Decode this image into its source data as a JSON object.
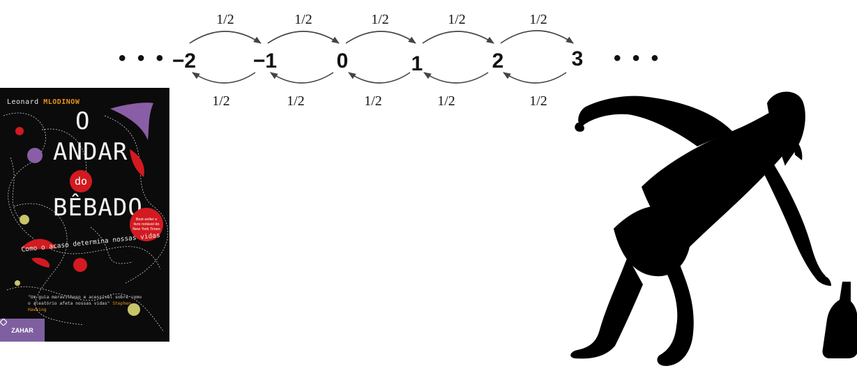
{
  "diagram": {
    "states": [
      "−2",
      "−1",
      "0",
      "1",
      "2",
      "3"
    ],
    "ellipsis": "• • •",
    "top_transitions": [
      "1/2",
      "1/2",
      "1/2",
      "1/2",
      "1/2"
    ],
    "bottom_transitions": [
      "1/2",
      "1/2",
      "1/2",
      "1/2",
      "1/2"
    ]
  },
  "book": {
    "author_first": "Leonard",
    "author_last": "MLODINOW",
    "title_line1": "O",
    "title_line2": "ANDAR",
    "title_line3": "do",
    "title_line4": "BÊBADO",
    "subtitle": "Como o acaso determina nossas vidas",
    "badge": "Best-seller e livro notável do New York Times",
    "quote": "\"Um guia maravilhoso e acessível sobre como o aleatório afeta nossas vidas\"",
    "quote_author": "Stephen Hawking",
    "publisher": "ZAHAR",
    "colors": {
      "background": "#0b0b0b",
      "red": "#d21a20",
      "purple": "#8a5ea6",
      "orange": "#e8921a",
      "olive": "#c8c46a"
    }
  },
  "figure": {
    "silhouette_icon": "drunk-man-with-bottle-icon"
  }
}
